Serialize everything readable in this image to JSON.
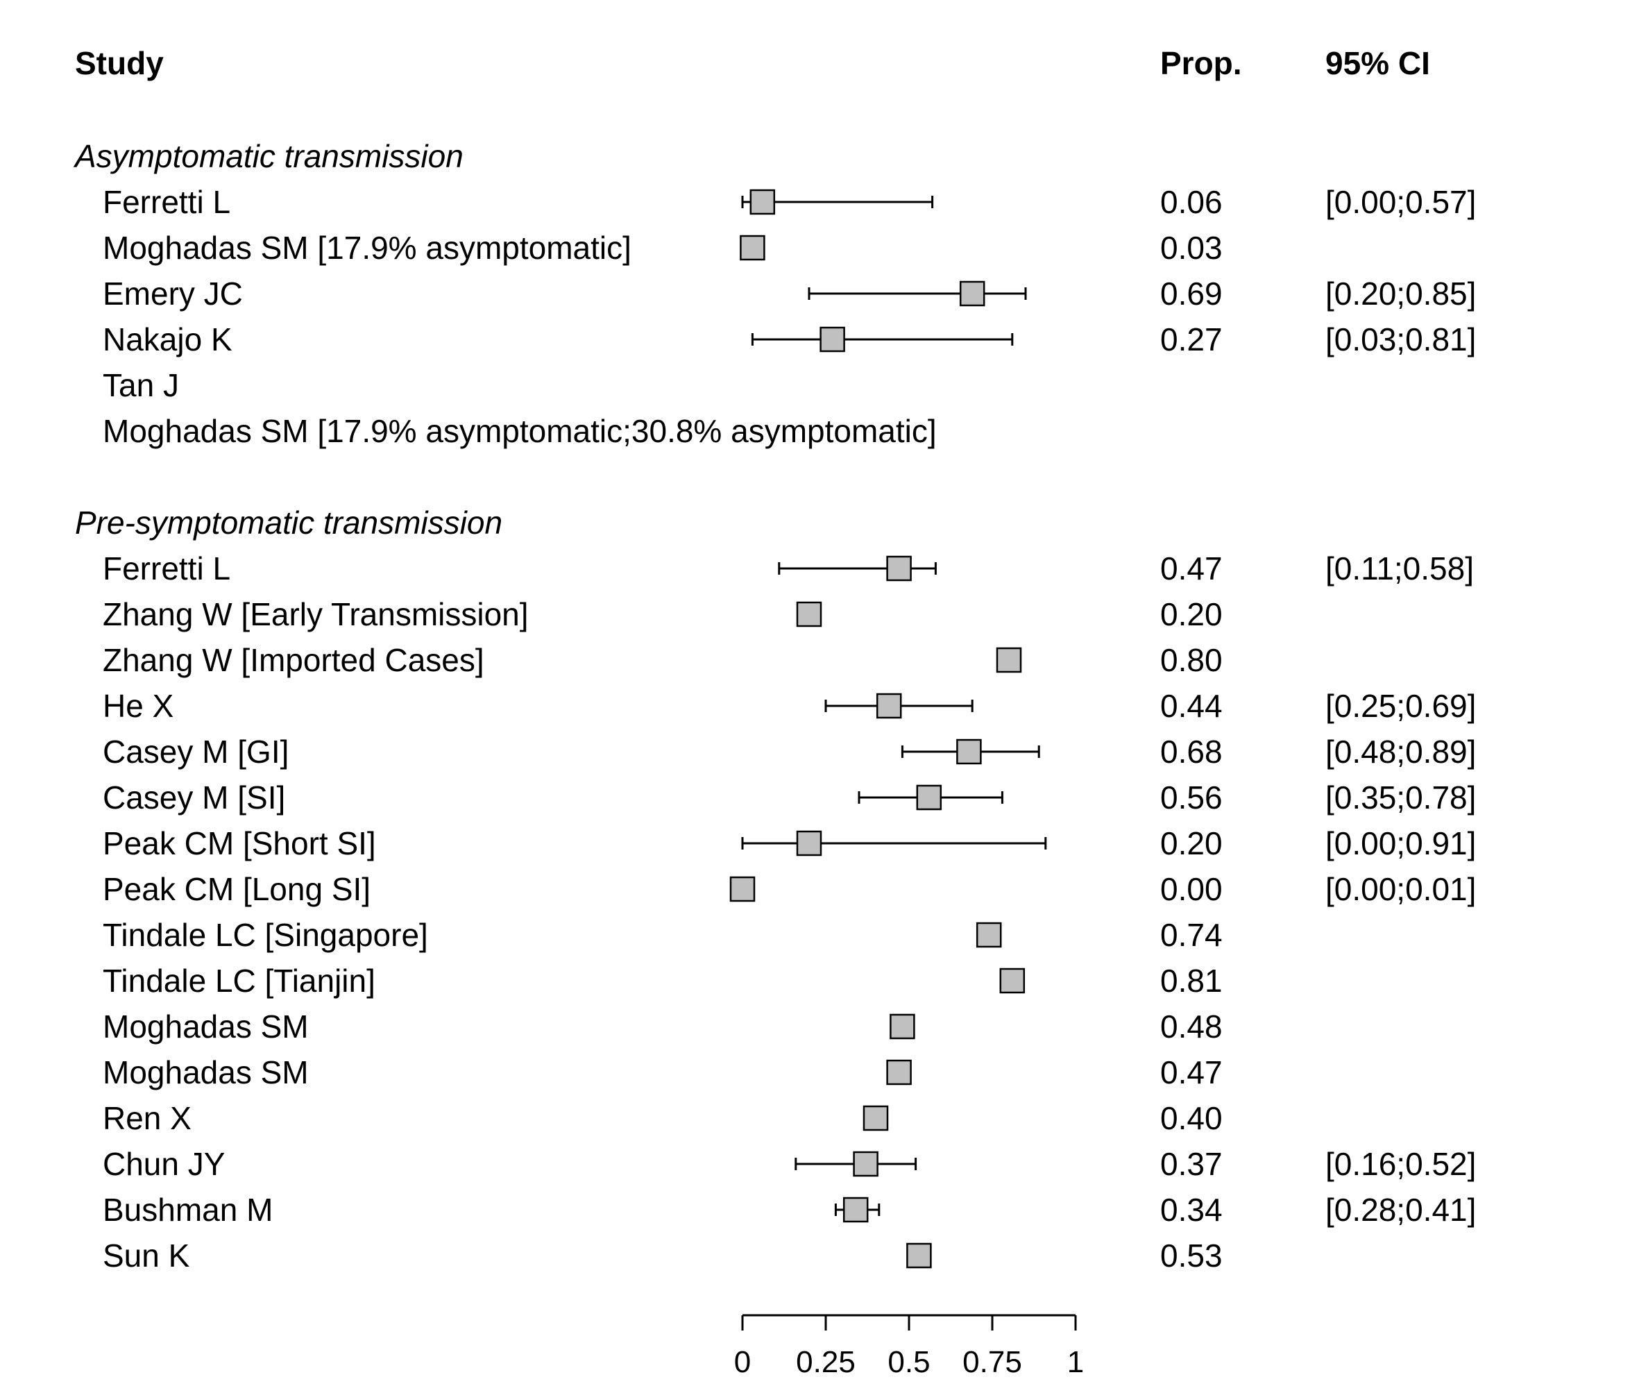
{
  "chart_data": {
    "type": "forest",
    "columns": {
      "study": "Study",
      "prop": "Prop.",
      "ci": "95% CI"
    },
    "xlim": [
      0,
      1
    ],
    "x_ticks": [
      0,
      0.25,
      0.5,
      0.75,
      1
    ],
    "x_tick_labels": [
      "0",
      "0.25",
      "0.5",
      "0.75",
      "1"
    ],
    "marker_color": "#c0c0c0",
    "groups": [
      {
        "name": "Asymptomatic transmission",
        "studies": [
          {
            "label": "Ferretti L",
            "prop": 0.06,
            "prop_text": "0.06",
            "lower": 0.0,
            "upper": 0.57,
            "ci_text": "[0.00;0.57]"
          },
          {
            "label": "Moghadas SM [17.9% asymptomatic]",
            "prop": 0.03,
            "prop_text": "0.03",
            "lower": null,
            "upper": null,
            "ci_text": ""
          },
          {
            "label": "Emery JC",
            "prop": 0.69,
            "prop_text": "0.69",
            "lower": 0.2,
            "upper": 0.85,
            "ci_text": "[0.20;0.85]"
          },
          {
            "label": "Nakajo K",
            "prop": 0.27,
            "prop_text": "0.27",
            "lower": 0.03,
            "upper": 0.81,
            "ci_text": "[0.03;0.81]"
          },
          {
            "label": "Tan J",
            "prop": null,
            "prop_text": "",
            "lower": null,
            "upper": null,
            "ci_text": ""
          },
          {
            "label": "Moghadas SM [17.9% asymptomatic;30.8% asymptomatic]",
            "prop": null,
            "prop_text": "",
            "lower": null,
            "upper": null,
            "ci_text": ""
          }
        ]
      },
      {
        "name": "Pre-symptomatic transmission",
        "studies": [
          {
            "label": "Ferretti L",
            "prop": 0.47,
            "prop_text": "0.47",
            "lower": 0.11,
            "upper": 0.58,
            "ci_text": "[0.11;0.58]"
          },
          {
            "label": "Zhang W [Early Transmission]",
            "prop": 0.2,
            "prop_text": "0.20",
            "lower": null,
            "upper": null,
            "ci_text": ""
          },
          {
            "label": "Zhang W [Imported Cases]",
            "prop": 0.8,
            "prop_text": "0.80",
            "lower": null,
            "upper": null,
            "ci_text": ""
          },
          {
            "label": "He X",
            "prop": 0.44,
            "prop_text": "0.44",
            "lower": 0.25,
            "upper": 0.69,
            "ci_text": "[0.25;0.69]"
          },
          {
            "label": "Casey M [GI]",
            "prop": 0.68,
            "prop_text": "0.68",
            "lower": 0.48,
            "upper": 0.89,
            "ci_text": "[0.48;0.89]"
          },
          {
            "label": "Casey M [SI]",
            "prop": 0.56,
            "prop_text": "0.56",
            "lower": 0.35,
            "upper": 0.78,
            "ci_text": "[0.35;0.78]"
          },
          {
            "label": "Peak CM [Short SI]",
            "prop": 0.2,
            "prop_text": "0.20",
            "lower": 0.0,
            "upper": 0.91,
            "ci_text": "[0.00;0.91]"
          },
          {
            "label": "Peak CM [Long SI]",
            "prop": 0.0,
            "prop_text": "0.00",
            "lower": 0.0,
            "upper": 0.01,
            "ci_text": "[0.00;0.01]"
          },
          {
            "label": "Tindale LC [Singapore]",
            "prop": 0.74,
            "prop_text": "0.74",
            "lower": null,
            "upper": null,
            "ci_text": ""
          },
          {
            "label": "Tindale LC [Tianjin]",
            "prop": 0.81,
            "prop_text": "0.81",
            "lower": null,
            "upper": null,
            "ci_text": ""
          },
          {
            "label": "Moghadas SM",
            "prop": 0.48,
            "prop_text": "0.48",
            "lower": null,
            "upper": null,
            "ci_text": ""
          },
          {
            "label": "Moghadas SM",
            "prop": 0.47,
            "prop_text": "0.47",
            "lower": null,
            "upper": null,
            "ci_text": ""
          },
          {
            "label": "Ren X",
            "prop": 0.4,
            "prop_text": "0.40",
            "lower": null,
            "upper": null,
            "ci_text": ""
          },
          {
            "label": "Chun JY",
            "prop": 0.37,
            "prop_text": "0.37",
            "lower": 0.16,
            "upper": 0.52,
            "ci_text": "[0.16;0.52]"
          },
          {
            "label": "Bushman M",
            "prop": 0.34,
            "prop_text": "0.34",
            "lower": 0.28,
            "upper": 0.41,
            "ci_text": "[0.28;0.41]"
          },
          {
            "label": "Sun K",
            "prop": 0.53,
            "prop_text": "0.53",
            "lower": null,
            "upper": null,
            "ci_text": ""
          }
        ]
      }
    ]
  }
}
